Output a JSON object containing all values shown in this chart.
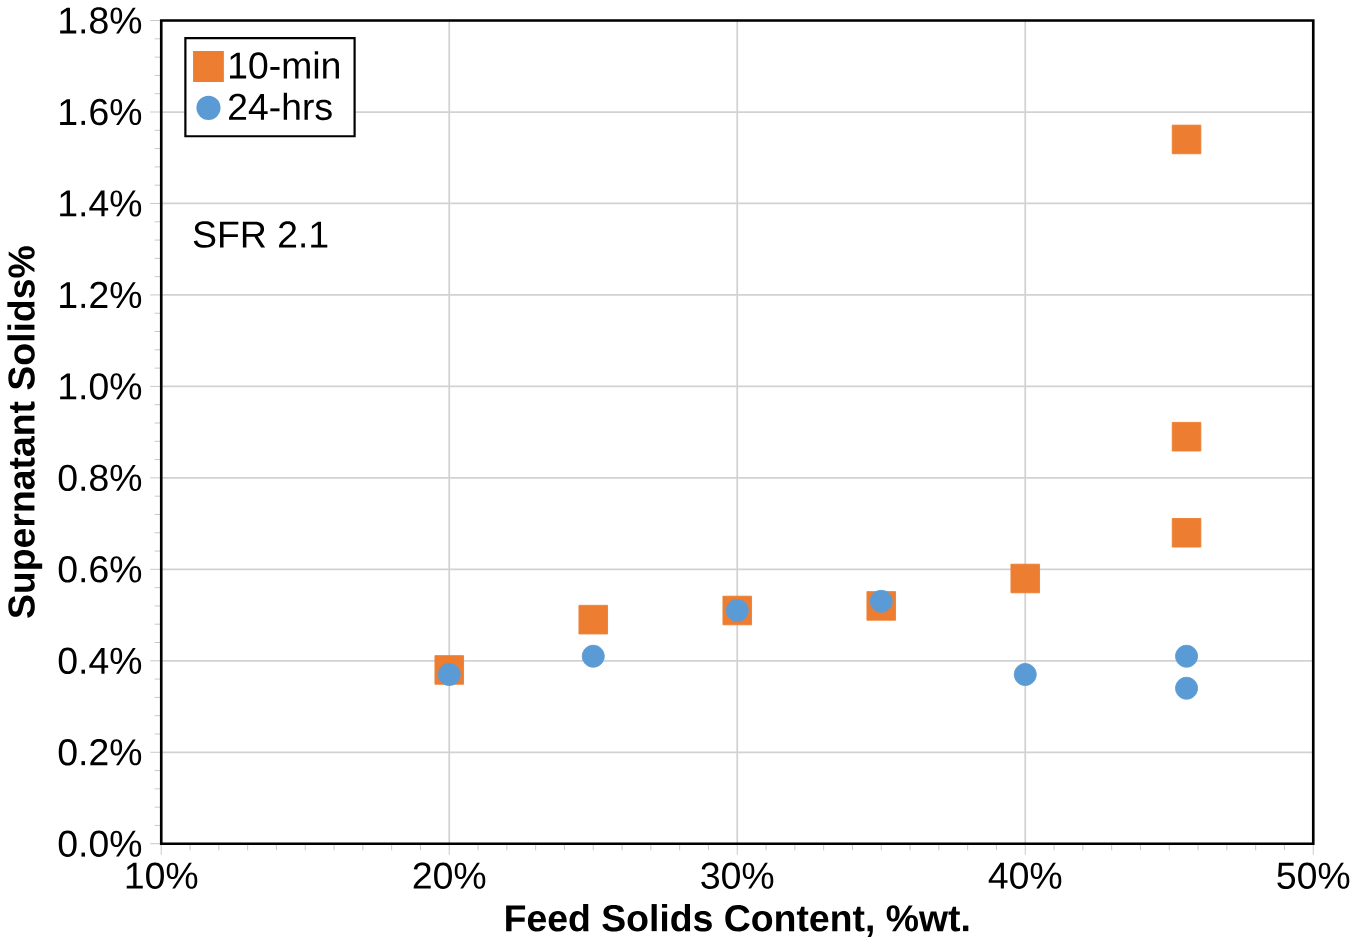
{
  "chart_data": {
    "type": "scatter",
    "xlabel": "Feed Solids Content, %wt.",
    "ylabel": "Supernatant Solids%",
    "annotations": [
      "SFR 2.1"
    ],
    "series": [
      {
        "name": "10-min",
        "color": "#ed7d31",
        "marker": "square",
        "x": [
          20,
          25,
          30,
          35,
          40,
          45.6,
          45.6,
          45.6
        ],
        "values": [
          0.38,
          0.49,
          0.51,
          0.52,
          0.58,
          1.54,
          0.89,
          0.68
        ]
      },
      {
        "name": "24-hrs",
        "color": "#5b9bd5",
        "marker": "circle",
        "x": [
          20,
          25,
          30,
          35,
          40,
          45.6,
          45.6
        ],
        "values": [
          0.37,
          0.41,
          0.51,
          0.53,
          0.37,
          0.41,
          0.34
        ]
      }
    ],
    "xlim": [
      10,
      50
    ],
    "xticks": [
      {
        "value": 10,
        "label": "10%"
      },
      {
        "value": 20,
        "label": "20%"
      },
      {
        "value": 30,
        "label": "30%"
      },
      {
        "value": 40,
        "label": "40%"
      },
      {
        "value": 50,
        "label": "50%"
      }
    ],
    "ylim": [
      0,
      1.8
    ],
    "yticks": [
      {
        "value": 0,
        "label": "0.0%"
      },
      {
        "value": 0.2,
        "label": "0.2%"
      },
      {
        "value": 0.4,
        "label": "0.4%"
      },
      {
        "value": 0.6,
        "label": "0.6%"
      },
      {
        "value": 0.8,
        "label": "0.8%"
      },
      {
        "value": 1.0,
        "label": "1.0%"
      },
      {
        "value": 1.2,
        "label": "1.2%"
      },
      {
        "value": 1.4,
        "label": "1.4%"
      },
      {
        "value": 1.6,
        "label": "1.6%"
      },
      {
        "value": 1.8,
        "label": "1.8%"
      }
    ],
    "grid": true,
    "legend": "top left"
  }
}
